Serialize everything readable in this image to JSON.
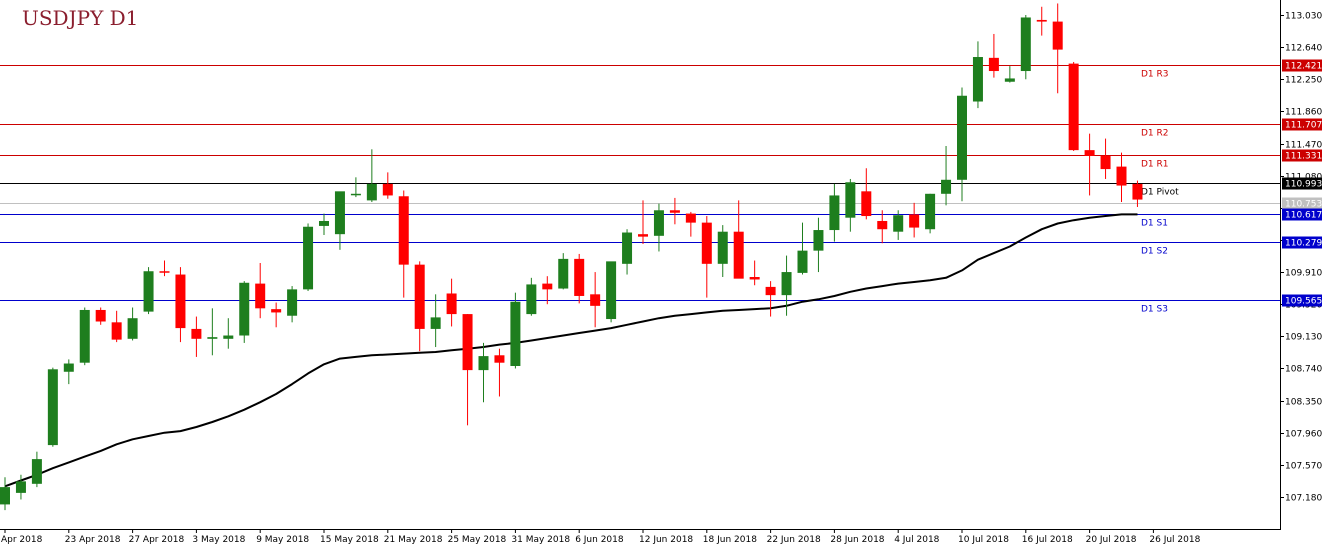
{
  "chart_title": "USDJPY D1",
  "colors": {
    "bull": "#1e7e1e",
    "bear": "#ff0000",
    "ma": "#000000",
    "resistance": "#cc0000",
    "support": "#0000cc",
    "pivot": "#000000",
    "bid_line": "#c0c0c0",
    "bid_tag": "#c0c0c0"
  },
  "chart_data": {
    "type": "candlestick",
    "title": "USDJPY D1",
    "ylim": [
      107.0,
      113.15
    ],
    "yticks": [
      "113.030",
      "112.640",
      "112.250",
      "111.860",
      "111.470",
      "111.080",
      "110.690",
      "110.300",
      "109.910",
      "109.520",
      "109.130",
      "108.740",
      "108.350",
      "107.960",
      "107.570",
      "107.180"
    ],
    "xlabels": [
      "Apr 2018",
      "23 Apr 2018",
      "27 Apr 2018",
      "3 May 2018",
      "9 May 2018",
      "15 May 2018",
      "21 May 2018",
      "25 May 2018",
      "31 May 2018",
      "6 Jun 2018",
      "12 Jun 2018",
      "18 Jun 2018",
      "22 Jun 2018",
      "28 Jun 2018",
      "4 Jul 2018",
      "10 Jul 2018",
      "16 Jul 2018",
      "20 Jul 2018",
      "26 Jul 2018"
    ],
    "candles": [
      {
        "o": 107.09,
        "h": 107.42,
        "l": 107.02,
        "c": 107.3
      },
      {
        "o": 107.23,
        "h": 107.45,
        "l": 107.15,
        "c": 107.37
      },
      {
        "o": 107.34,
        "h": 107.73,
        "l": 107.3,
        "c": 107.64
      },
      {
        "o": 107.81,
        "h": 108.75,
        "l": 107.79,
        "c": 108.73
      },
      {
        "o": 108.7,
        "h": 108.85,
        "l": 108.55,
        "c": 108.8
      },
      {
        "o": 108.81,
        "h": 109.48,
        "l": 108.78,
        "c": 109.45
      },
      {
        "o": 109.45,
        "h": 109.48,
        "l": 109.27,
        "c": 109.31
      },
      {
        "o": 109.3,
        "h": 109.44,
        "l": 109.06,
        "c": 109.09
      },
      {
        "o": 109.1,
        "h": 109.48,
        "l": 109.08,
        "c": 109.35
      },
      {
        "o": 109.43,
        "h": 109.97,
        "l": 109.4,
        "c": 109.92
      },
      {
        "o": 109.92,
        "h": 110.05,
        "l": 109.86,
        "c": 109.91
      },
      {
        "o": 109.88,
        "h": 109.97,
        "l": 109.06,
        "c": 109.23
      },
      {
        "o": 109.22,
        "h": 109.37,
        "l": 108.88,
        "c": 109.1
      },
      {
        "o": 109.1,
        "h": 109.47,
        "l": 108.9,
        "c": 109.12
      },
      {
        "o": 109.1,
        "h": 109.35,
        "l": 108.98,
        "c": 109.14
      },
      {
        "o": 109.14,
        "h": 109.8,
        "l": 109.05,
        "c": 109.78
      },
      {
        "o": 109.77,
        "h": 110.02,
        "l": 109.35,
        "c": 109.47
      },
      {
        "o": 109.46,
        "h": 109.54,
        "l": 109.24,
        "c": 109.42
      },
      {
        "o": 109.38,
        "h": 109.74,
        "l": 109.3,
        "c": 109.7
      },
      {
        "o": 109.7,
        "h": 110.5,
        "l": 109.68,
        "c": 110.46
      },
      {
        "o": 110.47,
        "h": 110.62,
        "l": 110.36,
        "c": 110.53
      },
      {
        "o": 110.37,
        "h": 110.88,
        "l": 110.18,
        "c": 110.89
      },
      {
        "o": 110.85,
        "h": 111.06,
        "l": 110.82,
        "c": 110.86
      },
      {
        "o": 110.78,
        "h": 111.4,
        "l": 110.76,
        "c": 110.98
      },
      {
        "o": 110.98,
        "h": 111.12,
        "l": 110.8,
        "c": 110.84
      },
      {
        "o": 110.83,
        "h": 110.9,
        "l": 109.6,
        "c": 110.0
      },
      {
        "o": 110.0,
        "h": 110.04,
        "l": 108.95,
        "c": 109.22
      },
      {
        "o": 109.22,
        "h": 109.64,
        "l": 109.0,
        "c": 109.36
      },
      {
        "o": 109.65,
        "h": 109.83,
        "l": 109.25,
        "c": 109.4
      },
      {
        "o": 109.4,
        "h": 109.4,
        "l": 108.05,
        "c": 108.72
      },
      {
        "o": 108.72,
        "h": 109.05,
        "l": 108.33,
        "c": 108.89
      },
      {
        "o": 108.9,
        "h": 108.98,
        "l": 108.4,
        "c": 108.81
      },
      {
        "o": 108.77,
        "h": 109.66,
        "l": 108.74,
        "c": 109.55
      },
      {
        "o": 109.4,
        "h": 109.84,
        "l": 109.38,
        "c": 109.76
      },
      {
        "o": 109.77,
        "h": 109.86,
        "l": 109.52,
        "c": 109.7
      },
      {
        "o": 109.71,
        "h": 110.14,
        "l": 109.7,
        "c": 110.07
      },
      {
        "o": 110.07,
        "h": 110.13,
        "l": 109.53,
        "c": 109.62
      },
      {
        "o": 109.64,
        "h": 109.91,
        "l": 109.24,
        "c": 109.5
      },
      {
        "o": 109.34,
        "h": 110.02,
        "l": 109.3,
        "c": 110.04
      },
      {
        "o": 110.01,
        "h": 110.43,
        "l": 109.88,
        "c": 110.39
      },
      {
        "o": 110.37,
        "h": 110.78,
        "l": 110.25,
        "c": 110.34
      },
      {
        "o": 110.35,
        "h": 110.74,
        "l": 110.16,
        "c": 110.66
      },
      {
        "o": 110.66,
        "h": 110.81,
        "l": 110.49,
        "c": 110.63
      },
      {
        "o": 110.62,
        "h": 110.64,
        "l": 110.34,
        "c": 110.51
      },
      {
        "o": 110.51,
        "h": 110.59,
        "l": 109.6,
        "c": 110.01
      },
      {
        "o": 110.01,
        "h": 110.48,
        "l": 109.85,
        "c": 110.4
      },
      {
        "o": 110.4,
        "h": 110.78,
        "l": 109.88,
        "c": 109.83
      },
      {
        "o": 109.85,
        "h": 110.05,
        "l": 109.75,
        "c": 109.82
      },
      {
        "o": 109.73,
        "h": 109.8,
        "l": 109.37,
        "c": 109.63
      },
      {
        "o": 109.63,
        "h": 110.11,
        "l": 109.38,
        "c": 109.91
      },
      {
        "o": 109.9,
        "h": 110.51,
        "l": 109.88,
        "c": 110.17
      },
      {
        "o": 110.17,
        "h": 110.57,
        "l": 109.91,
        "c": 110.42
      },
      {
        "o": 110.42,
        "h": 110.98,
        "l": 110.28,
        "c": 110.84
      },
      {
        "o": 110.57,
        "h": 111.04,
        "l": 110.4,
        "c": 111.0
      },
      {
        "o": 110.89,
        "h": 111.17,
        "l": 110.55,
        "c": 110.59
      },
      {
        "o": 110.53,
        "h": 110.66,
        "l": 110.26,
        "c": 110.43
      },
      {
        "o": 110.4,
        "h": 110.66,
        "l": 110.3,
        "c": 110.6
      },
      {
        "o": 110.61,
        "h": 110.75,
        "l": 110.33,
        "c": 110.45
      },
      {
        "o": 110.43,
        "h": 110.86,
        "l": 110.38,
        "c": 110.86
      },
      {
        "o": 110.86,
        "h": 111.44,
        "l": 110.72,
        "c": 111.03
      },
      {
        "o": 111.03,
        "h": 112.15,
        "l": 110.77,
        "c": 112.05
      },
      {
        "o": 111.98,
        "h": 112.71,
        "l": 111.9,
        "c": 112.52
      },
      {
        "o": 112.51,
        "h": 112.8,
        "l": 112.27,
        "c": 112.35
      },
      {
        "o": 112.22,
        "h": 112.41,
        "l": 112.21,
        "c": 112.26
      },
      {
        "o": 112.35,
        "h": 113.03,
        "l": 112.25,
        "c": 113.0
      },
      {
        "o": 112.97,
        "h": 113.13,
        "l": 112.78,
        "c": 112.95
      },
      {
        "o": 112.95,
        "h": 113.17,
        "l": 112.08,
        "c": 112.61
      },
      {
        "o": 112.44,
        "h": 112.46,
        "l": 111.38,
        "c": 111.39
      },
      {
        "o": 111.39,
        "h": 111.59,
        "l": 110.84,
        "c": 111.32
      },
      {
        "o": 111.32,
        "h": 111.53,
        "l": 111.04,
        "c": 111.16
      },
      {
        "o": 111.19,
        "h": 111.36,
        "l": 110.76,
        "c": 110.96
      },
      {
        "o": 110.98,
        "h": 111.02,
        "l": 110.7,
        "c": 110.79
      }
    ],
    "ma": [
      107.31,
      107.38,
      107.45,
      107.53,
      107.6,
      107.67,
      107.74,
      107.82,
      107.88,
      107.92,
      107.96,
      107.98,
      108.03,
      108.09,
      108.16,
      108.24,
      108.33,
      108.43,
      108.55,
      108.68,
      108.79,
      108.86,
      108.88,
      108.9,
      108.91,
      108.92,
      108.93,
      108.94,
      108.96,
      108.98,
      109.0,
      109.03,
      109.05,
      109.08,
      109.11,
      109.14,
      109.17,
      109.2,
      109.23,
      109.27,
      109.31,
      109.35,
      109.38,
      109.4,
      109.42,
      109.44,
      109.45,
      109.46,
      109.47,
      109.5,
      109.55,
      109.58,
      109.62,
      109.67,
      109.71,
      109.74,
      109.77,
      109.79,
      109.81,
      109.84,
      109.93,
      110.06,
      110.14,
      110.22,
      110.33,
      110.43,
      110.5,
      110.54,
      110.57,
      110.59,
      110.61,
      110.61
    ],
    "levels": [
      {
        "label": "D1 R3",
        "value": 112.421,
        "price": "112.421",
        "kind": "resistance"
      },
      {
        "label": "D1 R2",
        "value": 111.707,
        "price": "111.707",
        "kind": "resistance"
      },
      {
        "label": "D1 R1",
        "value": 111.331,
        "price": "111.331",
        "kind": "resistance"
      },
      {
        "label": "D1 Pivot",
        "value": 110.993,
        "price": "110.993",
        "kind": "pivot"
      },
      {
        "label": "D1 S1",
        "value": 110.617,
        "price": "110.617",
        "kind": "support"
      },
      {
        "label": "D1 S2",
        "value": 110.279,
        "price": "110.279",
        "kind": "support"
      },
      {
        "label": "D1 S3",
        "value": 109.565,
        "price": "109.565",
        "kind": "support"
      }
    ],
    "bid": {
      "value": 110.753,
      "price": "110.753"
    }
  }
}
